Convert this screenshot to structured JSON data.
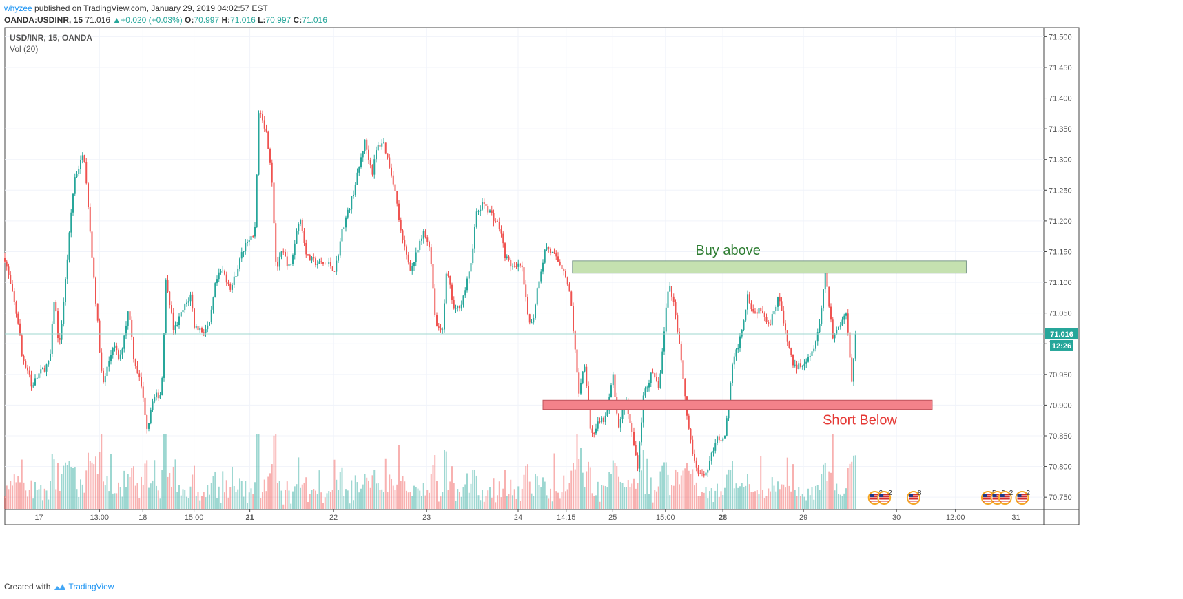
{
  "header": {
    "user": "whyzee",
    "published_text": "published on TradingView.com, January 29, 2019 04:02:57 EST",
    "symbol": "OANDA:USDINR, 15",
    "last": "71.016",
    "change": "+0.020 (+0.03%)",
    "open_label": "O:",
    "open": "70.997",
    "high_label": "H:",
    "high": "71.016",
    "low_label": "L:",
    "low": "70.997",
    "close_label": "C:",
    "close": "71.016"
  },
  "legend": {
    "symbol": "USD/INR, 15, OANDA",
    "volume": "Vol (20)"
  },
  "footer": {
    "created_with": "Created with",
    "brand": "TradingView"
  },
  "colors": {
    "up": "#26a69a",
    "down": "#ef5350",
    "buy_zone": "#c5e1b0",
    "short_zone": "#f4828a",
    "buy_text": "#2e7d32",
    "short_text": "#e53935",
    "last_price_tag": "#26a69a"
  },
  "chart_data": {
    "type": "candlestick",
    "symbol": "USD/INR",
    "interval": "15",
    "y_range": [
      70.73,
      71.515
    ],
    "y_ticks": [
      "71.500",
      "71.450",
      "71.400",
      "71.350",
      "71.300",
      "71.250",
      "71.200",
      "71.150",
      "71.100",
      "71.050",
      "71.000",
      "70.950",
      "70.900",
      "70.850",
      "70.800",
      "70.750"
    ],
    "x_ticks": [
      {
        "label": "17",
        "t": 1.1,
        "bold": false
      },
      {
        "label": "13:00",
        "t": 3.05,
        "bold": false
      },
      {
        "label": "18",
        "t": 4.45,
        "bold": false
      },
      {
        "label": "15:00",
        "t": 6.1,
        "bold": false
      },
      {
        "label": "21",
        "t": 7.9,
        "bold": true
      },
      {
        "label": "22",
        "t": 10.6,
        "bold": false
      },
      {
        "label": "23",
        "t": 13.6,
        "bold": false
      },
      {
        "label": "24",
        "t": 16.55,
        "bold": false
      },
      {
        "label": "14:15",
        "t": 18.1,
        "bold": false
      },
      {
        "label": "25",
        "t": 19.6,
        "bold": false
      },
      {
        "label": "15:00",
        "t": 21.3,
        "bold": false
      },
      {
        "label": "28",
        "t": 23.15,
        "bold": true
      },
      {
        "label": "29",
        "t": 25.75,
        "bold": false
      },
      {
        "label": "30",
        "t": 28.75,
        "bold": false
      },
      {
        "label": "12:00",
        "t": 30.65,
        "bold": false
      },
      {
        "label": "31",
        "t": 32.6,
        "bold": false
      }
    ],
    "x_max": 33.5,
    "price_path": [
      [
        0,
        71.14
      ],
      [
        0.45,
        71.03
      ],
      [
        0.55,
        70.98
      ],
      [
        0.8,
        70.95
      ],
      [
        0.85,
        70.93
      ],
      [
        1.1,
        70.95
      ],
      [
        1.45,
        70.97
      ],
      [
        1.6,
        71.08
      ],
      [
        1.75,
        70.99
      ],
      [
        1.95,
        71.1
      ],
      [
        2.15,
        71.22
      ],
      [
        2.25,
        71.27
      ],
      [
        2.55,
        71.31
      ],
      [
        2.75,
        71.18
      ],
      [
        2.95,
        71.06
      ],
      [
        3.15,
        70.93
      ],
      [
        3.35,
        70.97
      ],
      [
        3.5,
        71.0
      ],
      [
        3.7,
        70.97
      ],
      [
        4.0,
        71.06
      ],
      [
        4.15,
        70.98
      ],
      [
        4.4,
        70.93
      ],
      [
        4.6,
        70.86
      ],
      [
        4.75,
        70.91
      ],
      [
        5.05,
        70.92
      ],
      [
        5.2,
        71.11
      ],
      [
        5.45,
        71.02
      ],
      [
        5.7,
        71.05
      ],
      [
        6.0,
        71.08
      ],
      [
        6.1,
        71.03
      ],
      [
        6.4,
        71.02
      ],
      [
        6.6,
        71.03
      ],
      [
        6.8,
        71.1
      ],
      [
        7.0,
        71.12
      ],
      [
        7.3,
        71.09
      ],
      [
        7.6,
        71.14
      ],
      [
        7.8,
        71.17
      ],
      [
        8.05,
        71.17
      ],
      [
        8.2,
        71.39
      ],
      [
        8.45,
        71.34
      ],
      [
        8.6,
        71.28
      ],
      [
        8.75,
        71.12
      ],
      [
        8.95,
        71.15
      ],
      [
        9.2,
        71.12
      ],
      [
        9.5,
        71.21
      ],
      [
        9.75,
        71.14
      ],
      [
        10.1,
        71.13
      ],
      [
        10.45,
        71.13
      ],
      [
        10.65,
        71.12
      ],
      [
        10.9,
        71.19
      ],
      [
        11.1,
        71.22
      ],
      [
        11.35,
        71.27
      ],
      [
        11.6,
        71.33
      ],
      [
        11.85,
        71.28
      ],
      [
        12.0,
        71.32
      ],
      [
        12.2,
        71.33
      ],
      [
        12.55,
        71.26
      ],
      [
        12.8,
        71.17
      ],
      [
        13.1,
        71.12
      ],
      [
        13.3,
        71.15
      ],
      [
        13.5,
        71.18
      ],
      [
        13.7,
        71.16
      ],
      [
        13.9,
        71.03
      ],
      [
        14.1,
        71.02
      ],
      [
        14.25,
        71.12
      ],
      [
        14.5,
        71.05
      ],
      [
        14.75,
        71.07
      ],
      [
        15.0,
        71.12
      ],
      [
        15.2,
        71.21
      ],
      [
        15.45,
        71.23
      ],
      [
        15.7,
        71.21
      ],
      [
        15.95,
        71.19
      ],
      [
        16.15,
        71.14
      ],
      [
        16.45,
        71.12
      ],
      [
        16.65,
        71.13
      ],
      [
        16.85,
        71.05
      ],
      [
        17.0,
        71.03
      ],
      [
        17.2,
        71.1
      ],
      [
        17.45,
        71.16
      ],
      [
        17.75,
        71.14
      ],
      [
        18.05,
        71.12
      ],
      [
        18.25,
        71.07
      ],
      [
        18.5,
        70.92
      ],
      [
        18.7,
        70.97
      ],
      [
        18.9,
        70.85
      ],
      [
        19.15,
        70.87
      ],
      [
        19.4,
        70.88
      ],
      [
        19.6,
        70.95
      ],
      [
        19.8,
        70.86
      ],
      [
        20.0,
        70.91
      ],
      [
        20.2,
        70.86
      ],
      [
        20.4,
        70.8
      ],
      [
        20.6,
        70.92
      ],
      [
        20.85,
        70.95
      ],
      [
        21.1,
        70.93
      ],
      [
        21.4,
        71.1
      ],
      [
        21.6,
        71.06
      ],
      [
        21.8,
        70.98
      ],
      [
        22.0,
        70.88
      ],
      [
        22.25,
        70.8
      ],
      [
        22.5,
        70.78
      ],
      [
        22.75,
        70.81
      ],
      [
        22.95,
        70.85
      ],
      [
        23.2,
        70.84
      ],
      [
        23.45,
        70.96
      ],
      [
        23.75,
        71.02
      ],
      [
        23.95,
        71.08
      ],
      [
        24.15,
        71.05
      ],
      [
        24.4,
        71.06
      ],
      [
        24.65,
        71.03
      ],
      [
        24.95,
        71.08
      ],
      [
        25.15,
        71.02
      ],
      [
        25.45,
        70.96
      ],
      [
        25.75,
        70.97
      ],
      [
        26.05,
        70.99
      ],
      [
        26.3,
        71.04
      ],
      [
        26.45,
        71.12
      ],
      [
        26.7,
        71.01
      ],
      [
        26.9,
        71.03
      ],
      [
        27.15,
        71.05
      ],
      [
        27.3,
        70.94
      ],
      [
        27.45,
        71.016
      ]
    ],
    "annotations": [
      {
        "kind": "zone",
        "label": "Buy above",
        "price_top": 71.135,
        "price_bottom": 71.115,
        "t_start": 18.3,
        "t_end": 31.0
      },
      {
        "kind": "zone",
        "label": "Short Below",
        "price_top": 70.908,
        "price_bottom": 70.893,
        "t_start": 17.35,
        "t_end": 29.9
      }
    ],
    "last_price": "71.016",
    "countdown": "12:26",
    "events": [
      {
        "t": 28.05,
        "count": "3"
      },
      {
        "t": 28.35,
        "count": "2"
      },
      {
        "t": 29.3,
        "count": "8"
      },
      {
        "t": 31.7,
        "count": "5"
      },
      {
        "t": 32.0,
        "count": "9"
      },
      {
        "t": 32.25,
        "count": "2"
      },
      {
        "t": 32.8,
        "count": "2"
      }
    ]
  }
}
